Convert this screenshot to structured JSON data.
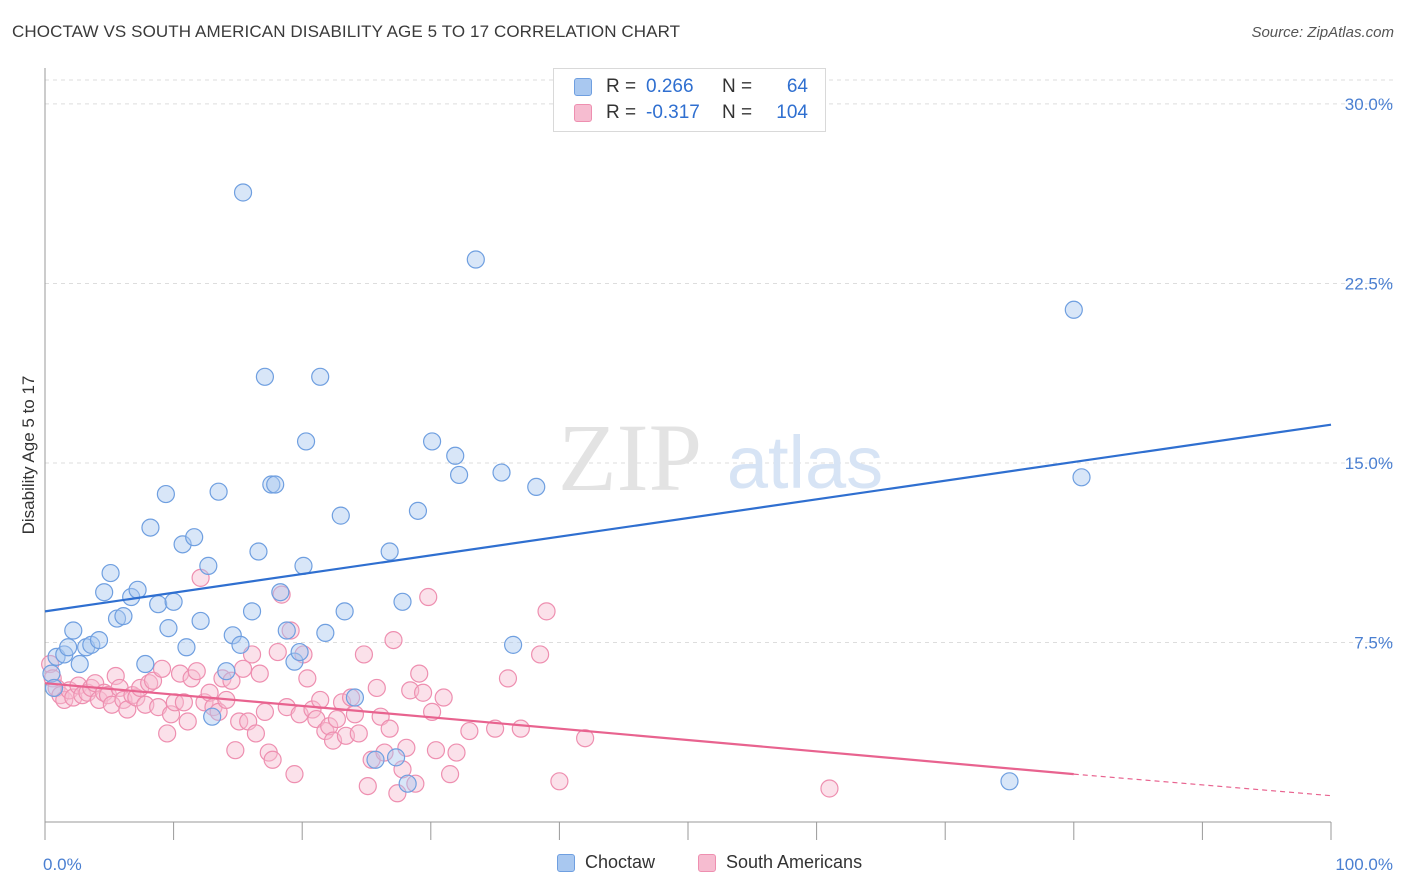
{
  "title": "CHOCTAW VS SOUTH AMERICAN DISABILITY AGE 5 TO 17 CORRELATION CHART",
  "source": "Source: ZipAtlas.com",
  "watermark": {
    "zip": "ZIP",
    "atlas": "atlas"
  },
  "legend": {
    "rows": [
      {
        "r_label": "R =",
        "r_value": "0.266",
        "n_label": "N =",
        "n_value": "64"
      },
      {
        "r_label": "R =",
        "r_value": "-0.317",
        "n_label": "N =",
        "n_value": "104"
      }
    ]
  },
  "colors": {
    "choctaw_fill": "#a9c8f0",
    "choctaw_stroke": "#6f9fe0",
    "choctaw_line": "#2f6fd0",
    "south_fill": "#f6bcd0",
    "south_stroke": "#ee8fb0",
    "south_line": "#e8638f",
    "axis_text": "#4a7fd1",
    "grid": "#dddddd"
  },
  "chart_data": {
    "type": "scatter",
    "title": "CHOCTAW VS SOUTH AMERICAN DISABILITY AGE 5 TO 17 CORRELATION CHART",
    "xlabel": "",
    "ylabel": "Disability Age 5 to 17",
    "xlim": [
      0,
      100
    ],
    "ylim": [
      0,
      31
    ],
    "x_tick_labels": [
      "0.0%",
      "100.0%"
    ],
    "y_ticks": [
      7.5,
      15.0,
      22.5,
      30.0
    ],
    "y_tick_labels": [
      "7.5%",
      "15.0%",
      "22.5%",
      "30.0%"
    ],
    "grid": true,
    "legend_position": "top-center",
    "series": [
      {
        "name": "Choctaw",
        "r": 0.266,
        "n": 64,
        "trend": {
          "x": [
            0,
            100
          ],
          "y": [
            8.8,
            16.6
          ]
        },
        "points": [
          [
            0.5,
            6.2
          ],
          [
            0.7,
            5.6
          ],
          [
            0.9,
            6.9
          ],
          [
            1.5,
            7.0
          ],
          [
            1.8,
            7.3
          ],
          [
            2.2,
            8.0
          ],
          [
            2.7,
            6.6
          ],
          [
            3.2,
            7.3
          ],
          [
            3.6,
            7.4
          ],
          [
            4.2,
            7.6
          ],
          [
            4.6,
            9.6
          ],
          [
            5.1,
            10.4
          ],
          [
            5.6,
            8.5
          ],
          [
            6.1,
            8.6
          ],
          [
            6.7,
            9.4
          ],
          [
            7.2,
            9.7
          ],
          [
            7.8,
            6.6
          ],
          [
            8.2,
            12.3
          ],
          [
            8.8,
            9.1
          ],
          [
            9.4,
            13.7
          ],
          [
            9.6,
            8.1
          ],
          [
            10.0,
            9.2
          ],
          [
            10.7,
            11.6
          ],
          [
            11.0,
            7.3
          ],
          [
            11.6,
            11.9
          ],
          [
            12.1,
            8.4
          ],
          [
            12.7,
            10.7
          ],
          [
            13.0,
            4.4
          ],
          [
            13.5,
            13.8
          ],
          [
            14.1,
            6.3
          ],
          [
            14.6,
            7.8
          ],
          [
            15.2,
            7.4
          ],
          [
            15.4,
            26.3
          ],
          [
            16.1,
            8.8
          ],
          [
            16.6,
            11.3
          ],
          [
            17.1,
            18.6
          ],
          [
            17.6,
            14.1
          ],
          [
            17.9,
            14.1
          ],
          [
            18.3,
            9.6
          ],
          [
            18.8,
            8.0
          ],
          [
            19.4,
            6.7
          ],
          [
            19.8,
            7.1
          ],
          [
            20.3,
            15.9
          ],
          [
            20.1,
            10.7
          ],
          [
            21.4,
            18.6
          ],
          [
            21.8,
            7.9
          ],
          [
            23.0,
            12.8
          ],
          [
            23.3,
            8.8
          ],
          [
            24.1,
            5.2
          ],
          [
            25.7,
            2.6
          ],
          [
            26.8,
            11.3
          ],
          [
            27.3,
            2.7
          ],
          [
            27.8,
            9.2
          ],
          [
            28.2,
            1.6
          ],
          [
            29.0,
            13.0
          ],
          [
            30.1,
            15.9
          ],
          [
            31.9,
            15.3
          ],
          [
            32.2,
            14.5
          ],
          [
            33.5,
            23.5
          ],
          [
            35.5,
            14.6
          ],
          [
            36.4,
            7.4
          ],
          [
            38.2,
            14.0
          ],
          [
            80.0,
            21.4
          ],
          [
            80.6,
            14.4
          ],
          [
            75.0,
            1.7
          ]
        ]
      },
      {
        "name": "South Americans",
        "r": -0.317,
        "n": 104,
        "trend": {
          "x": [
            0,
            80
          ],
          "y": [
            5.8,
            2.0
          ]
        },
        "trend_dashed": {
          "x": [
            80,
            100
          ],
          "y": [
            2.0,
            1.1
          ]
        },
        "points": [
          [
            0.4,
            6.6
          ],
          [
            0.6,
            6.0
          ],
          [
            0.9,
            5.6
          ],
          [
            1.2,
            5.3
          ],
          [
            1.5,
            5.1
          ],
          [
            1.9,
            5.5
          ],
          [
            2.2,
            5.2
          ],
          [
            2.6,
            5.7
          ],
          [
            2.9,
            5.3
          ],
          [
            3.3,
            5.4
          ],
          [
            3.6,
            5.6
          ],
          [
            3.9,
            5.8
          ],
          [
            4.2,
            5.1
          ],
          [
            4.6,
            5.4
          ],
          [
            4.9,
            5.3
          ],
          [
            5.2,
            4.9
          ],
          [
            5.5,
            6.1
          ],
          [
            5.8,
            5.6
          ],
          [
            6.1,
            5.1
          ],
          [
            6.4,
            4.7
          ],
          [
            6.8,
            5.3
          ],
          [
            7.1,
            5.2
          ],
          [
            7.4,
            5.6
          ],
          [
            7.8,
            4.9
          ],
          [
            8.1,
            5.8
          ],
          [
            8.4,
            5.9
          ],
          [
            8.8,
            4.8
          ],
          [
            9.1,
            6.4
          ],
          [
            9.5,
            3.7
          ],
          [
            9.8,
            4.5
          ],
          [
            10.1,
            5.0
          ],
          [
            10.5,
            6.2
          ],
          [
            10.8,
            5.0
          ],
          [
            11.1,
            4.2
          ],
          [
            11.4,
            6.0
          ],
          [
            11.8,
            6.3
          ],
          [
            12.1,
            10.2
          ],
          [
            12.4,
            5.0
          ],
          [
            12.8,
            5.4
          ],
          [
            13.1,
            4.8
          ],
          [
            13.5,
            4.6
          ],
          [
            13.8,
            6.0
          ],
          [
            14.1,
            5.1
          ],
          [
            14.5,
            5.9
          ],
          [
            14.8,
            3.0
          ],
          [
            15.1,
            4.2
          ],
          [
            15.4,
            6.4
          ],
          [
            15.8,
            4.2
          ],
          [
            16.1,
            7.0
          ],
          [
            16.4,
            3.7
          ],
          [
            16.7,
            6.2
          ],
          [
            17.1,
            4.6
          ],
          [
            17.4,
            2.9
          ],
          [
            17.7,
            2.6
          ],
          [
            18.1,
            7.1
          ],
          [
            18.4,
            9.5
          ],
          [
            18.8,
            4.8
          ],
          [
            19.1,
            8.0
          ],
          [
            19.4,
            2.0
          ],
          [
            19.8,
            4.5
          ],
          [
            20.1,
            7.0
          ],
          [
            20.4,
            6.0
          ],
          [
            20.8,
            4.7
          ],
          [
            21.1,
            4.3
          ],
          [
            21.4,
            5.1
          ],
          [
            21.8,
            3.8
          ],
          [
            22.1,
            4.0
          ],
          [
            22.4,
            3.4
          ],
          [
            22.7,
            4.3
          ],
          [
            23.1,
            5.0
          ],
          [
            23.4,
            3.6
          ],
          [
            23.8,
            5.2
          ],
          [
            24.1,
            4.5
          ],
          [
            24.4,
            3.7
          ],
          [
            24.8,
            7.0
          ],
          [
            25.1,
            1.5
          ],
          [
            25.4,
            2.6
          ],
          [
            25.8,
            5.6
          ],
          [
            26.1,
            4.4
          ],
          [
            26.4,
            2.9
          ],
          [
            26.8,
            3.9
          ],
          [
            27.1,
            7.6
          ],
          [
            27.4,
            1.2
          ],
          [
            27.8,
            2.2
          ],
          [
            28.1,
            3.1
          ],
          [
            28.4,
            5.5
          ],
          [
            28.8,
            1.6
          ],
          [
            29.1,
            6.2
          ],
          [
            29.4,
            5.4
          ],
          [
            29.8,
            9.4
          ],
          [
            30.1,
            4.6
          ],
          [
            30.4,
            3.0
          ],
          [
            31.0,
            5.2
          ],
          [
            31.5,
            2.0
          ],
          [
            32.0,
            2.9
          ],
          [
            33.0,
            3.8
          ],
          [
            35.0,
            3.9
          ],
          [
            36.0,
            6.0
          ],
          [
            37.0,
            3.9
          ],
          [
            38.5,
            7.0
          ],
          [
            39.0,
            8.8
          ],
          [
            40.0,
            1.7
          ],
          [
            42.0,
            3.5
          ],
          [
            61.0,
            1.4
          ]
        ]
      }
    ]
  },
  "bottom_legend": [
    "Choctaw",
    "South Americans"
  ]
}
